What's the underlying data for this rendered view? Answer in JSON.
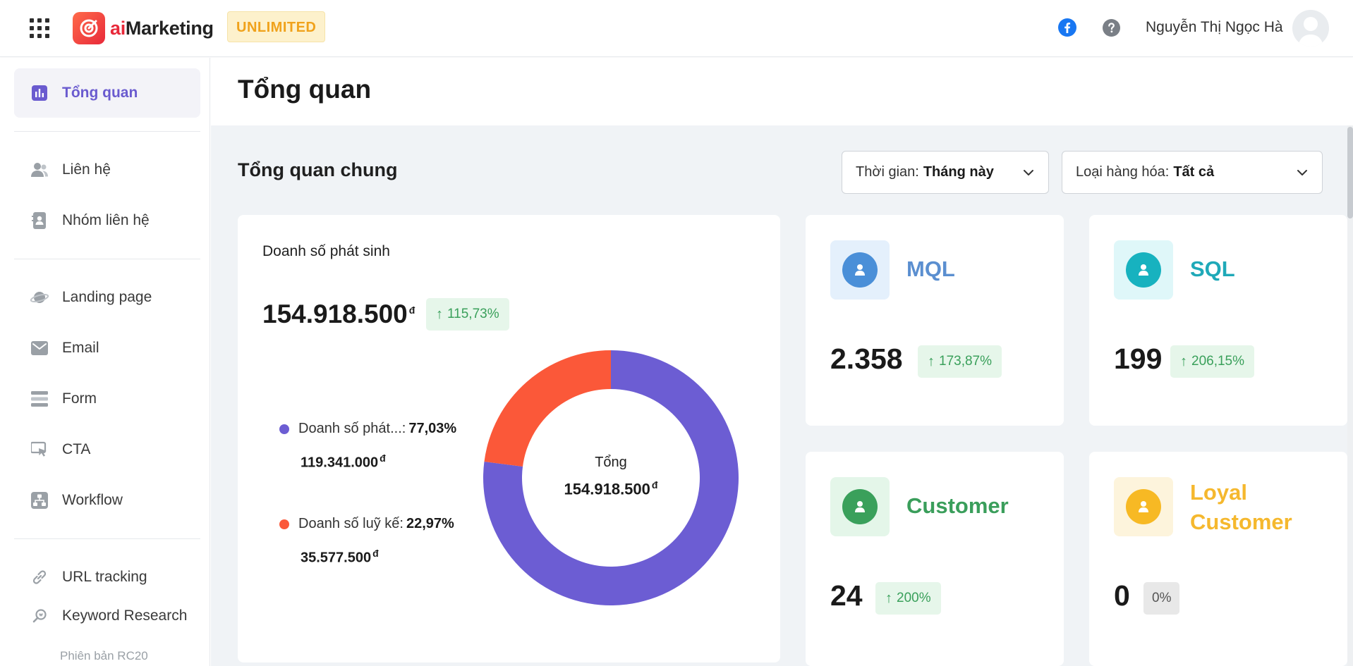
{
  "header": {
    "logo_text_ai": "ai",
    "logo_text_rest": "Marketing",
    "plan_badge": "UNLIMITED",
    "user_name": "Nguyễn Thị Ngọc Hà"
  },
  "sidebar": {
    "items": [
      {
        "label": "Tổng quan",
        "icon": "chart-icon",
        "active": true
      },
      {
        "label": "Liên hệ",
        "icon": "contacts-icon"
      },
      {
        "label": "Nhóm liên hệ",
        "icon": "contact-group-icon"
      },
      {
        "label": "Landing page",
        "icon": "planet-icon"
      },
      {
        "label": "Email",
        "icon": "email-icon"
      },
      {
        "label": "Form",
        "icon": "form-icon"
      },
      {
        "label": "CTA",
        "icon": "cta-icon"
      },
      {
        "label": "Workflow",
        "icon": "workflow-icon"
      },
      {
        "label": "URL tracking",
        "icon": "link-icon"
      },
      {
        "label": "Keyword Research",
        "icon": "keyword-icon"
      }
    ],
    "version": "Phiên bản RC20"
  },
  "main": {
    "page_title": "Tổng quan",
    "section_title": "Tổng quan chung",
    "filters": {
      "time_label": "Thời gian:",
      "time_value": "Tháng này",
      "goods_label": "Loại hàng hóa:",
      "goods_value": "Tất cả"
    },
    "revenue_card": {
      "title": "Doanh số phát sinh",
      "total": "154.918.500",
      "currency": "đ",
      "change": "115,73%",
      "legend": [
        {
          "label": "Doanh số phát...:",
          "pct": "77,03%",
          "amount": "119.341.000",
          "color": "#6c5dd3"
        },
        {
          "label": "Doanh số luỹ kế:",
          "pct": "22,97%",
          "amount": "35.577.500",
          "color": "#fb5839"
        }
      ],
      "center_label": "Tổng",
      "center_value": "154.918.500"
    },
    "stats": {
      "mql": {
        "label": "MQL",
        "value": "2.358",
        "change": "173,87%"
      },
      "sql": {
        "label": "SQL",
        "value": "199",
        "change": "206,15%"
      },
      "customer": {
        "label": "Customer",
        "value": "24",
        "change": "200%"
      },
      "loyal": {
        "label_line1": "Loyal",
        "label_line2": "Customer",
        "value": "0",
        "change": "0%"
      }
    }
  },
  "chart_data": {
    "type": "pie",
    "categories": [
      "Doanh số phát...",
      "Doanh số luỹ kế"
    ],
    "values": [
      77.03,
      22.97
    ],
    "colors": [
      "#6c5dd3",
      "#fb5839"
    ],
    "title": "Doanh số phát sinh"
  },
  "colors": {
    "accent": "#6c5dd3",
    "orange": "#fb5839",
    "mql": "#4a8fd8",
    "sql": "#1fb3c2",
    "customer": "#3aa05b",
    "loyal": "#f5b82e"
  }
}
